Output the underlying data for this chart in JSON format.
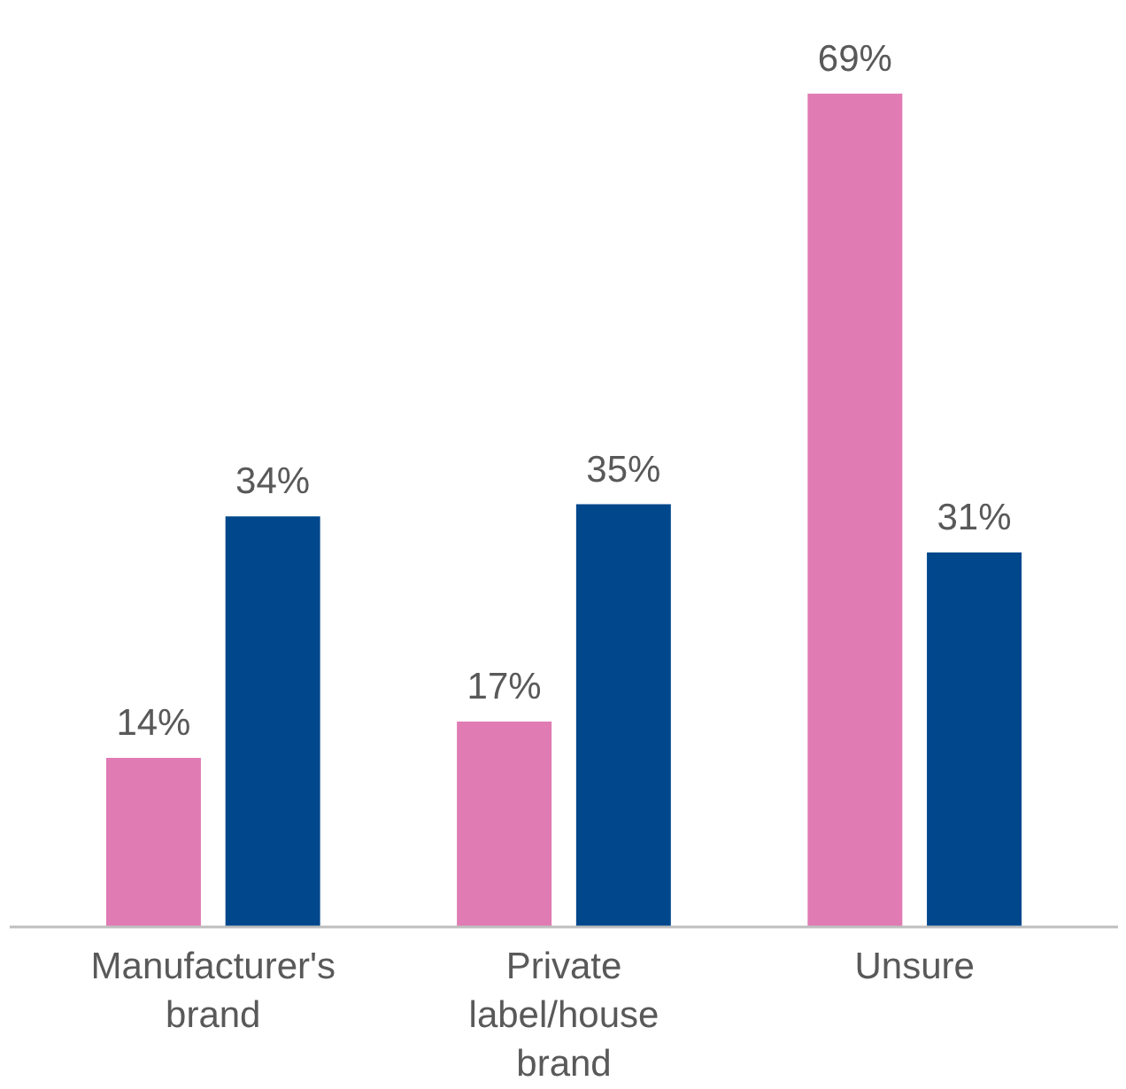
{
  "chart_data": {
    "type": "bar",
    "categories": [
      "Manufacturer's brand",
      "Private label/house brand",
      "Unsure"
    ],
    "series": [
      {
        "color": "#e07bb4",
        "values": [
          14,
          17,
          69
        ],
        "value_labels": [
          "14%",
          "17%",
          "69%"
        ]
      },
      {
        "color": "#00478c",
        "values": [
          34,
          35,
          31
        ],
        "value_labels": [
          "34%",
          "35%",
          "31%"
        ]
      }
    ]
  }
}
